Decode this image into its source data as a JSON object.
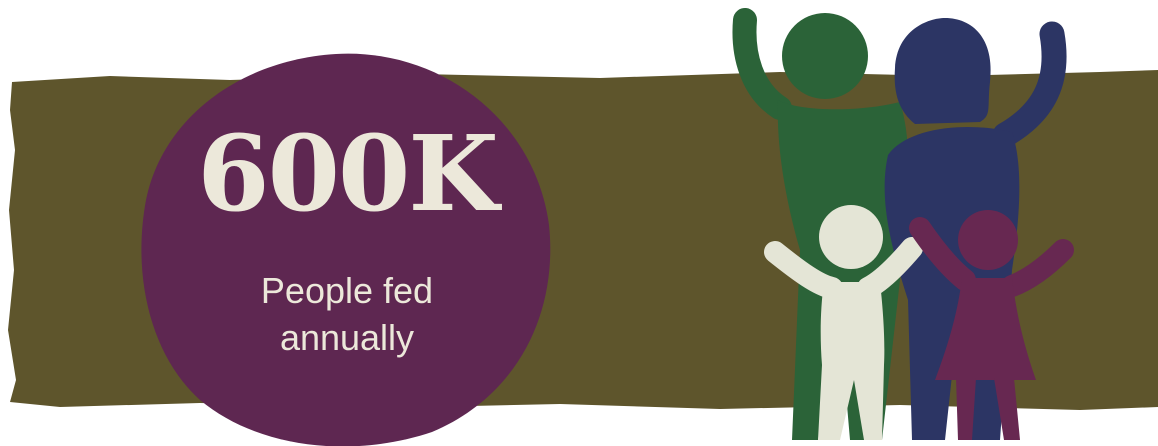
{
  "stat": {
    "value": "600K",
    "label_line1": "People fed",
    "label_line2": "annually"
  },
  "colors": {
    "banner": "#5e552c",
    "blob": "#5e2751",
    "stat_text": "#ece8da",
    "figure_green": "#2b6338",
    "figure_navy": "#2c3564",
    "figure_cream": "#e4e5d6",
    "figure_purple": "#672851"
  },
  "illustration": {
    "icon": "family-icon",
    "members": [
      "adult-green",
      "adult-navy",
      "child-cream",
      "child-purple"
    ]
  }
}
